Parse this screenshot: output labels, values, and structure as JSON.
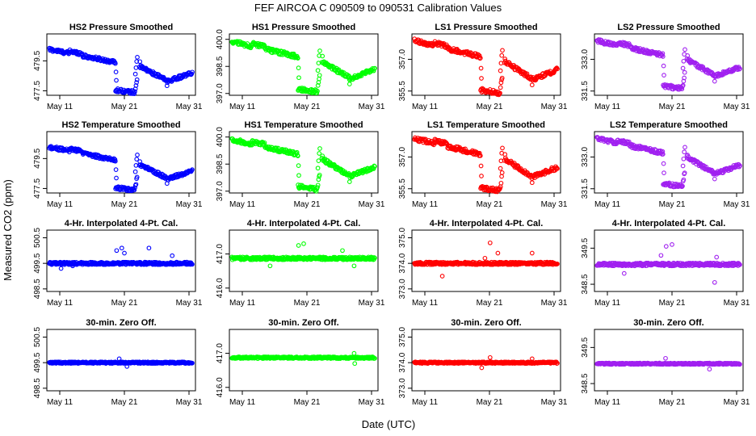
{
  "figure": {
    "title": "FEF   AIRCOA C   090509 to 090531   Calibration Values",
    "xlabel": "Date (UTC)",
    "ylabel": "Measured CO2 (ppm)"
  },
  "x_ticks": [
    "May 11",
    "May 21",
    "May 31"
  ],
  "x_tick_days": [
    11,
    21,
    31
  ],
  "xlim_days": [
    9,
    32
  ],
  "chart_data": [
    {
      "type": "scatter",
      "title": "HS2 Pressure Smoothed",
      "color": "#0000ff",
      "yticks": [
        "477.5",
        "479.5"
      ],
      "ytick_values": [
        477.5,
        479.5
      ],
      "ylim": [
        477.2,
        481.3
      ],
      "profile": "pressure",
      "base": 480.3,
      "drop": 2.8
    },
    {
      "type": "scatter",
      "title": "HS1 Pressure Smoothed",
      "color": "#00ff00",
      "yticks": [
        "397.0",
        "398.5",
        "400.0"
      ],
      "ytick_values": [
        397.0,
        398.5,
        400.0
      ],
      "ylim": [
        396.9,
        400.3
      ],
      "profile": "pressure",
      "base": 399.9,
      "drop": 2.7
    },
    {
      "type": "scatter",
      "title": "LS1 Pressure Smoothed",
      "color": "#ff0000",
      "yticks": [
        "355.5",
        "357.0"
      ],
      "ytick_values": [
        355.5,
        357.0
      ],
      "ylim": [
        355.3,
        358.2
      ],
      "profile": "pressure",
      "base": 357.9,
      "drop": 2.4
    },
    {
      "type": "scatter",
      "title": "LS2 Pressure Smoothed",
      "color": "#a020f0",
      "yticks": [
        "331.5",
        "333.0"
      ],
      "ytick_values": [
        331.5,
        333.0
      ],
      "ylim": [
        331.3,
        334.2
      ],
      "profile": "pressure",
      "base": 333.9,
      "drop": 2.2
    },
    {
      "type": "scatter",
      "title": "HS2 Temperature Smoothed",
      "color": "#0000ff",
      "yticks": [
        "477.5",
        "479.5"
      ],
      "ytick_values": [
        477.5,
        479.5
      ],
      "ylim": [
        477.2,
        481.3
      ],
      "profile": "pressure",
      "base": 480.3,
      "drop": 2.8
    },
    {
      "type": "scatter",
      "title": "HS1 Temperature Smoothed",
      "color": "#00ff00",
      "yticks": [
        "397.0",
        "398.5",
        "400.0"
      ],
      "ytick_values": [
        397.0,
        398.5,
        400.0
      ],
      "ylim": [
        396.9,
        400.3
      ],
      "profile": "pressure",
      "base": 399.9,
      "drop": 2.7
    },
    {
      "type": "scatter",
      "title": "LS1 Temperature Smoothed",
      "color": "#ff0000",
      "yticks": [
        "355.5",
        "357.0"
      ],
      "ytick_values": [
        355.5,
        357.0
      ],
      "ylim": [
        355.3,
        358.2
      ],
      "profile": "pressure",
      "base": 357.9,
      "drop": 2.4
    },
    {
      "type": "scatter",
      "title": "LS2 Temperature Smoothed",
      "color": "#a020f0",
      "yticks": [
        "331.5",
        "333.0"
      ],
      "ytick_values": [
        331.5,
        333.0
      ],
      "ylim": [
        331.3,
        334.2
      ],
      "profile": "pressure",
      "base": 333.9,
      "drop": 2.2
    },
    {
      "type": "scatter",
      "title": "4-Hr. Interpolated 4-Pt. Cal.",
      "color": "#0000ff",
      "yticks": [
        "498.5",
        "499.5",
        "500.5"
      ],
      "ytick_values": [
        498.5,
        499.5,
        500.5
      ],
      "ylim": [
        498.4,
        500.8
      ],
      "profile": "flat",
      "base": 499.5,
      "noise": 0.05,
      "spikes": [
        [
          19.8,
          500.0
        ],
        [
          20.6,
          500.1
        ],
        [
          21.0,
          499.9
        ],
        [
          24.8,
          500.1
        ],
        [
          28.4,
          499.8
        ],
        [
          11.2,
          499.3
        ],
        [
          13.0,
          499.4
        ]
      ]
    },
    {
      "type": "scatter",
      "title": "4-Hr. Interpolated 4-Pt. Cal.",
      "color": "#00ff00",
      "yticks": [
        "416.0",
        "417.0"
      ],
      "ytick_values": [
        416.0,
        417.0
      ],
      "ylim": [
        415.9,
        417.7
      ],
      "profile": "flat",
      "base": 416.87,
      "noise": 0.04,
      "spikes": [
        [
          19.7,
          417.25
        ],
        [
          20.5,
          417.3
        ],
        [
          15.3,
          416.65
        ],
        [
          28.3,
          416.65
        ],
        [
          26.5,
          417.1
        ]
      ]
    },
    {
      "type": "scatter",
      "title": "4-Hr. Interpolated 4-Pt. Cal.",
      "color": "#ff0000",
      "yticks": [
        "373.0",
        "374.0",
        "375.0"
      ],
      "ytick_values": [
        373.0,
        374.0,
        375.0
      ],
      "ylim": [
        372.9,
        375.3
      ],
      "profile": "flat",
      "base": 374.0,
      "noise": 0.05,
      "spikes": [
        [
          21.1,
          374.8
        ],
        [
          22.3,
          374.4
        ],
        [
          13.7,
          373.5
        ],
        [
          27.6,
          374.4
        ],
        [
          20.3,
          374.2
        ]
      ]
    },
    {
      "type": "scatter",
      "title": "4-Hr. Interpolated 4-Pt. Cal.",
      "color": "#a020f0",
      "yticks": [
        "348.5",
        "349.5"
      ],
      "ytick_values": [
        348.5,
        349.5
      ],
      "ylim": [
        348.3,
        350.0
      ],
      "profile": "flat",
      "base": 349.05,
      "noise": 0.04,
      "spikes": [
        [
          20.1,
          349.55
        ],
        [
          21.0,
          349.6
        ],
        [
          13.6,
          348.8
        ],
        [
          27.6,
          348.55
        ],
        [
          27.9,
          349.25
        ],
        [
          19.3,
          349.3
        ]
      ]
    },
    {
      "type": "scatter",
      "title": "30-min. Zero Off.",
      "color": "#0000ff",
      "yticks": [
        "498.5",
        "499.5",
        "500.5"
      ],
      "ytick_values": [
        498.5,
        499.5,
        500.5
      ],
      "ylim": [
        498.4,
        500.8
      ],
      "profile": "flat",
      "base": 499.5,
      "noise": 0.03,
      "spikes": [
        [
          20.2,
          499.65
        ],
        [
          21.4,
          499.35
        ]
      ]
    },
    {
      "type": "scatter",
      "title": "30-min. Zero Off.",
      "color": "#00ff00",
      "yticks": [
        "416.0",
        "417.0"
      ],
      "ytick_values": [
        416.0,
        417.0
      ],
      "ylim": [
        415.9,
        417.7
      ],
      "profile": "flat",
      "base": 416.87,
      "noise": 0.025,
      "spikes": [
        [
          28.3,
          417.0
        ],
        [
          28.4,
          416.7
        ]
      ]
    },
    {
      "type": "scatter",
      "title": "30-min. Zero Off.",
      "color": "#ff0000",
      "yticks": [
        "373.0",
        "374.0",
        "375.0"
      ],
      "ytick_values": [
        373.0,
        374.0,
        375.0
      ],
      "ylim": [
        372.9,
        375.3
      ],
      "profile": "flat",
      "base": 374.0,
      "noise": 0.03,
      "spikes": [
        [
          21.1,
          374.2
        ],
        [
          19.8,
          373.8
        ],
        [
          27.6,
          374.15
        ]
      ]
    },
    {
      "type": "scatter",
      "title": "30-min. Zero Off.",
      "color": "#a020f0",
      "yticks": [
        "348.5",
        "349.5"
      ],
      "ytick_values": [
        348.5,
        349.5
      ],
      "ylim": [
        348.3,
        350.0
      ],
      "profile": "flat",
      "base": 349.05,
      "noise": 0.02,
      "spikes": [
        [
          20.0,
          349.2
        ],
        [
          26.8,
          348.9
        ]
      ]
    }
  ]
}
